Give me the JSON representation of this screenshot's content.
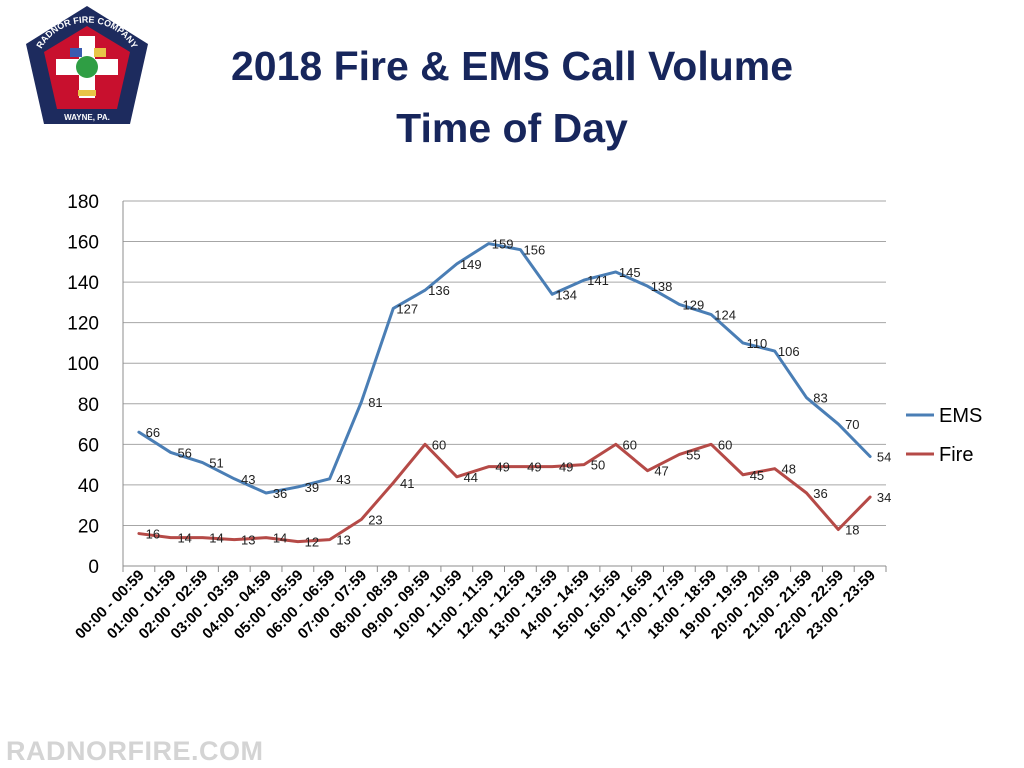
{
  "header": {
    "title_line1": "2018 Fire & EMS Call Volume",
    "title_line2": "Time of Day"
  },
  "logo": {
    "top_text": "RADNOR FIRE COMPANY",
    "bottom_text": "WAYNE, PA.",
    "colors": {
      "outer": "#1d2b5e",
      "inner": "#c8102e",
      "cross": "#ffffff"
    }
  },
  "footer": {
    "watermark": "RADNORFIRE.COM"
  },
  "colors": {
    "ems": "#4a7eb5",
    "fire": "#b54a47",
    "grid": "#a6a6a6",
    "title": "#17265c"
  },
  "chart_data": {
    "type": "line",
    "title": "",
    "xlabel": "",
    "ylabel": "",
    "ylim": [
      0,
      180
    ],
    "yticks": [
      0,
      20,
      40,
      60,
      80,
      100,
      120,
      140,
      160,
      180
    ],
    "grid": true,
    "legend_position": "right",
    "categories": [
      "00:00 - 00:59",
      "01:00 - 01:59",
      "02:00 - 02:59",
      "03:00 - 03:59",
      "04:00 - 04:59",
      "05:00 - 05:59",
      "06:00 - 06:59",
      "07:00 - 07:59",
      "08:00 - 08:59",
      "09:00 - 09:59",
      "10:00 - 10:59",
      "11:00 - 11:59",
      "12:00 - 12:59",
      "13:00 - 13:59",
      "14:00 - 14:59",
      "15:00 - 15:59",
      "16:00 - 16:59",
      "17:00 - 17:59",
      "18:00 - 18:59",
      "19:00 - 19:59",
      "20:00 - 20:59",
      "21:00 - 21:59",
      "22:00 - 22:59",
      "23:00 - 23:59"
    ],
    "series": [
      {
        "name": "EMS",
        "color": "#4a7eb5",
        "values": [
          66,
          56,
          51,
          43,
          36,
          39,
          43,
          81,
          127,
          136,
          149,
          159,
          156,
          134,
          141,
          145,
          138,
          129,
          124,
          110,
          106,
          83,
          70,
          54
        ]
      },
      {
        "name": "Fire",
        "color": "#b54a47",
        "values": [
          16,
          14,
          14,
          13,
          14,
          12,
          13,
          23,
          41,
          60,
          44,
          49,
          49,
          49,
          50,
          60,
          47,
          55,
          60,
          45,
          48,
          36,
          18,
          34
        ]
      }
    ]
  }
}
